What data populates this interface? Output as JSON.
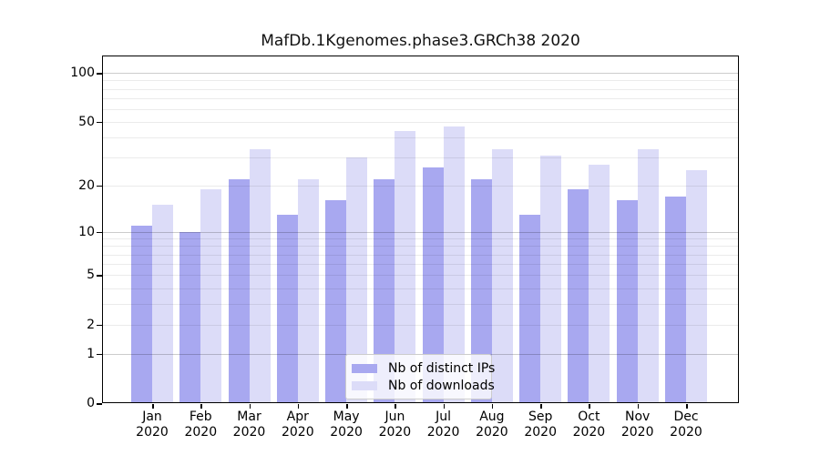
{
  "title": "MafDb.1Kgenomes.phase3.GRCh38 2020",
  "chart_data": {
    "type": "bar",
    "title": "MafDb.1Kgenomes.phase3.GRCh38 2020",
    "yscale": "log1p",
    "ylim": [
      0,
      128
    ],
    "grid": true,
    "categories": [
      "Jan",
      "Feb",
      "Mar",
      "Apr",
      "May",
      "Jun",
      "Jul",
      "Aug",
      "Sep",
      "Oct",
      "Nov",
      "Dec"
    ],
    "category_year": "2020",
    "series": [
      {
        "name": "Nb of distinct IPs",
        "color": "#a8a8f0",
        "values": [
          11,
          10,
          22,
          13,
          16,
          22,
          26,
          22,
          13,
          19,
          16,
          17
        ]
      },
      {
        "name": "Nb of downloads",
        "color": "#dcdcf8",
        "values": [
          15,
          19,
          34,
          22,
          30,
          44,
          47,
          34,
          31,
          27,
          34,
          25
        ]
      }
    ],
    "y_tick_values": [
      100,
      50,
      20,
      10,
      5,
      2,
      1,
      0
    ],
    "y_tick_labels": [
      "100",
      "50",
      "20",
      "10",
      "5",
      "2",
      "1",
      "0"
    ],
    "y_major_gridlines": [
      1,
      10,
      100
    ],
    "y_minor_gridlines": [
      2,
      3,
      4,
      5,
      6,
      7,
      8,
      9,
      20,
      30,
      40,
      50,
      60,
      70,
      80,
      90
    ],
    "legend": {
      "position": "lower center"
    },
    "colors": {
      "axis": "#000000",
      "background": "#ffffff",
      "grid_minor": "rgba(0,0,0,0.08)",
      "grid_major": "rgba(0,0,0,0.20)"
    }
  }
}
